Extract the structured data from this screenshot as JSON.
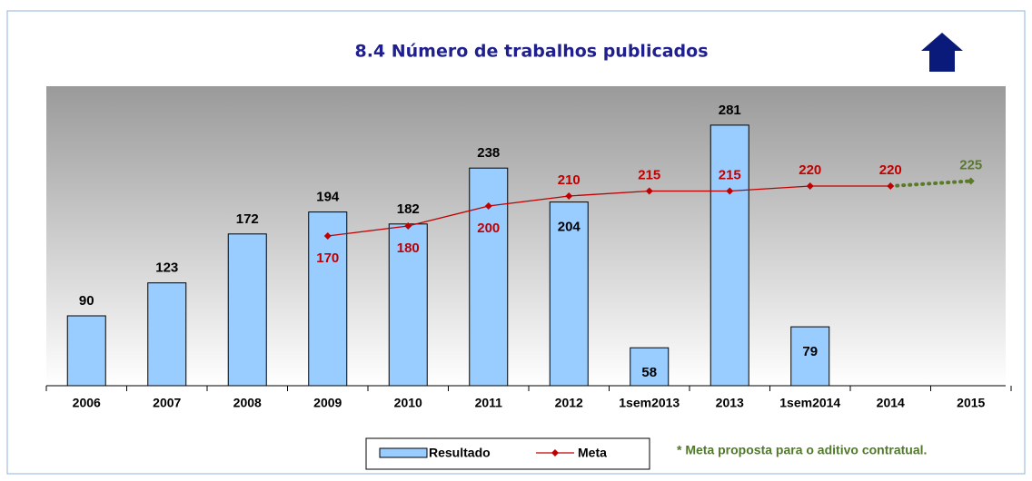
{
  "chart_data": {
    "type": "bar_line",
    "title": "8.4 Número de trabalhos publicados",
    "categories": [
      "2006",
      "2007",
      "2008",
      "2009",
      "2010",
      "2011",
      "2012",
      "1sem2013",
      "2013",
      "1sem2014",
      "2014",
      "2015"
    ],
    "series": [
      {
        "name": "Resultado",
        "type": "bar",
        "color": "#99ccff",
        "values": [
          90,
          123,
          172,
          194,
          182,
          238,
          204,
          58,
          281,
          79,
          null,
          null
        ]
      },
      {
        "name": "Meta",
        "type": "line",
        "color": "#c00000",
        "proposed_color": "#5a7a2a",
        "values": [
          null,
          null,
          null,
          170,
          180,
          200,
          210,
          215,
          215,
          220,
          220,
          225
        ]
      }
    ],
    "annotation": "* Meta proposta para o aditivo contratual.",
    "ylim": [
      20,
      320
    ]
  }
}
